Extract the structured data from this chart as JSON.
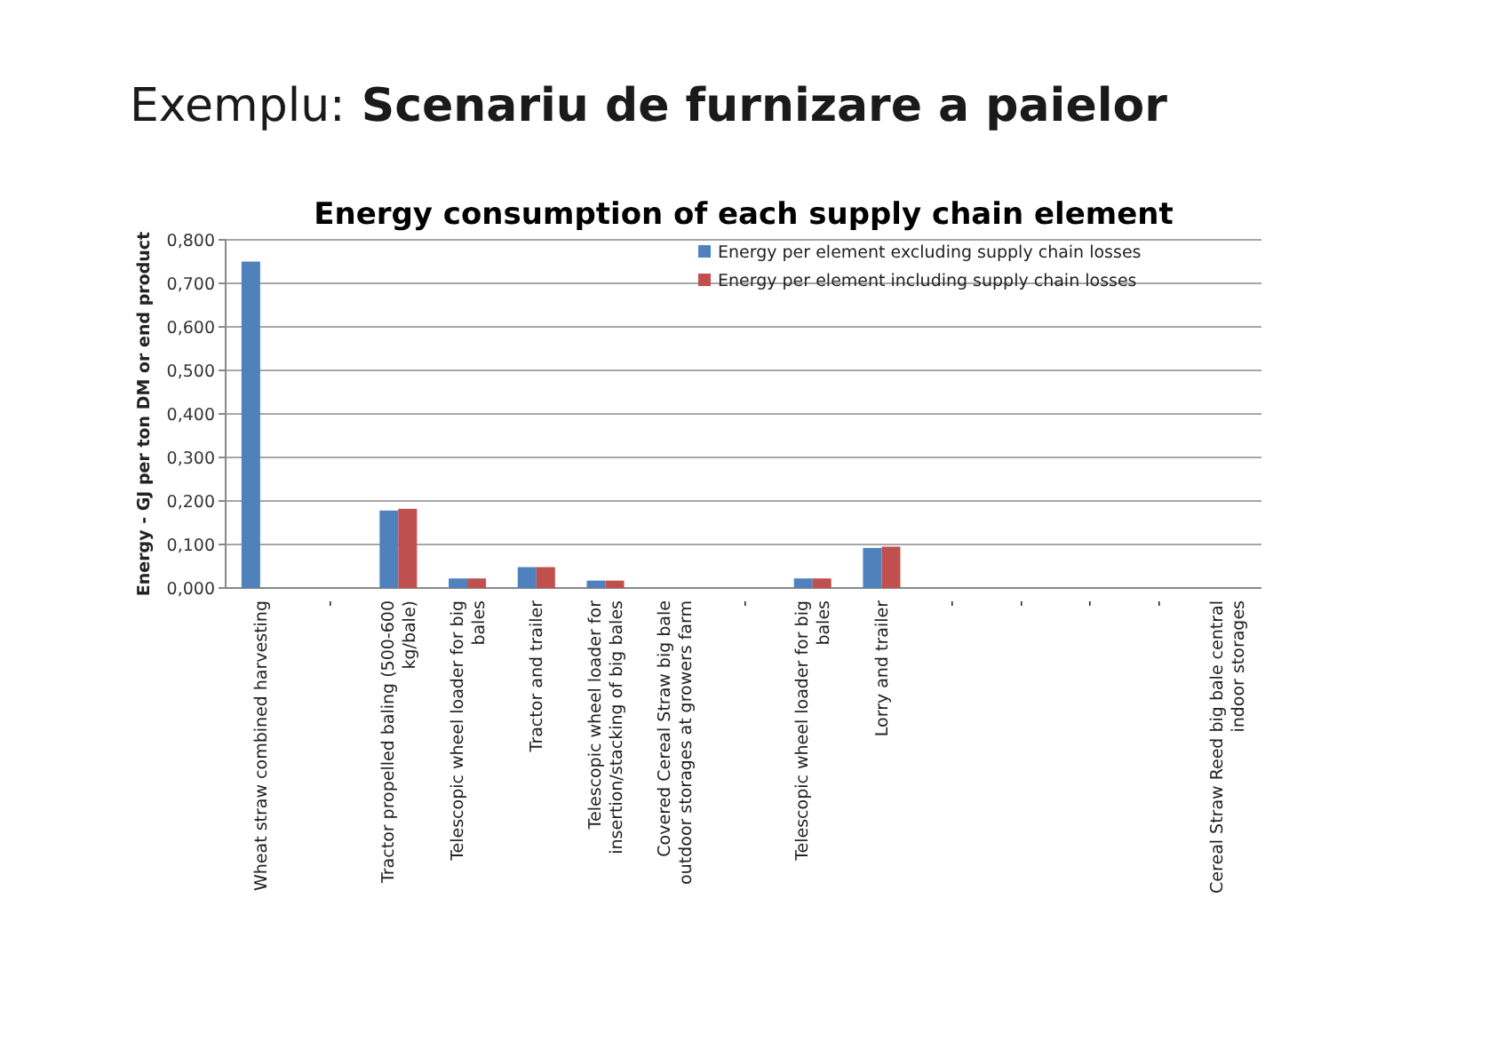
{
  "chart_data": {
    "type": "bar",
    "title": "Exemplu: Scenariu de furnizare a paielor",
    "subtitle": "Energy consumption of each supply chain element",
    "ylabel": "Energy - GJ per ton DM or end product",
    "categories": [
      "Wheat straw combined harvesting",
      "-",
      "Tractor propelled baling (500-600 kg/bale)",
      "Telescopic wheel loader for big bales",
      "Tractor and trailer",
      "Telescopic wheel loader for insertion/stacking of big bales",
      "Covered Cereal Straw big bale outdoor storages at growers farm",
      "-",
      "Telescopic wheel loader for big bales",
      "Lorry and trailer",
      "-",
      "-",
      "-",
      "-",
      "Cereal Straw Reed big bale central indoor storages"
    ],
    "series": [
      {
        "name": "Energy per element excluding supply chain losses",
        "color": "#4f81bd",
        "values": [
          0.75,
          null,
          0.178,
          0.022,
          0.048,
          0.017,
          null,
          null,
          0.022,
          0.092,
          null,
          null,
          null,
          null,
          null
        ]
      },
      {
        "name": "Energy per element including supply chain losses",
        "color": "#c0504d",
        "values": [
          null,
          null,
          0.182,
          0.022,
          0.048,
          0.017,
          null,
          null,
          0.022,
          0.095,
          null,
          null,
          null,
          null,
          null
        ]
      }
    ],
    "ylim": [
      0,
      0.8
    ],
    "yticks": [
      {
        "value": 0,
        "label": "0,000"
      },
      {
        "value": 0.1,
        "label": "0,100"
      },
      {
        "value": 0.2,
        "label": "0,200"
      },
      {
        "value": 0.3,
        "label": "0,300"
      },
      {
        "value": 0.4,
        "label": "0,400"
      },
      {
        "value": 0.5,
        "label": "0,500"
      },
      {
        "value": 0.6,
        "label": "0,600"
      },
      {
        "value": 0.7,
        "label": "0,700"
      },
      {
        "value": 0.8,
        "label": "0,800"
      }
    ],
    "grid": "y",
    "legend": "top right"
  }
}
